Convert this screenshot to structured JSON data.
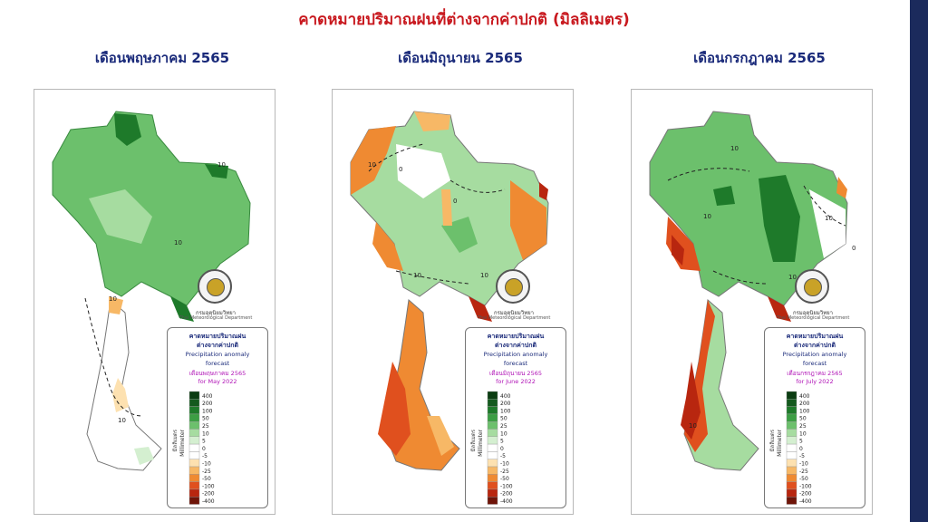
{
  "title": "คาดหมายปริมาณฝนที่ต่างจากค่าปกติ (มิลลิเมตร)",
  "maps": [
    {
      "heading": "เดือนพฤษภาคม 2565",
      "legend_month_th": "เดือนพฤษภาคม 2565",
      "legend_month_en": "for May 2022"
    },
    {
      "heading": "เดือนมิถุนายน 2565",
      "legend_month_th": "เดือนมิถุนายน 2565",
      "legend_month_en": "for June 2022"
    },
    {
      "heading": "เดือนกรกฎาคม 2565",
      "legend_month_th": "เดือนกรกฎาคม 2565",
      "legend_month_en": "for July 2022"
    }
  ],
  "legend": {
    "title_th_1": "คาดหมายปริมาณฝน",
    "title_th_2": "ต่างจากค่าปกติ",
    "title_en_1": "Precipitation anomaly",
    "title_en_2": "forecast",
    "unit_th": "มิลลิเมตร",
    "unit_en": "Millimeter",
    "scale": [
      {
        "label": "400",
        "color": "#0b3d12"
      },
      {
        "label": "200",
        "color": "#145a1e"
      },
      {
        "label": "100",
        "color": "#1e7a2a"
      },
      {
        "label": "50",
        "color": "#3c9e44"
      },
      {
        "label": "25",
        "color": "#6cc06c"
      },
      {
        "label": "10",
        "color": "#a6dca0"
      },
      {
        "label": "5",
        "color": "#d4efd0"
      },
      {
        "label": "0",
        "color": "#ffffff"
      },
      {
        "label": "-5",
        "color": "#ffffff"
      },
      {
        "label": "-10",
        "color": "#fde1b0"
      },
      {
        "label": "-25",
        "color": "#f7b866"
      },
      {
        "label": "-50",
        "color": "#ef8a32"
      },
      {
        "label": "-100",
        "color": "#e0501e"
      },
      {
        "label": "-200",
        "color": "#b8260f"
      },
      {
        "label": "-400",
        "color": "#6e1408"
      }
    ]
  },
  "agency": {
    "th": "กรมอุตุนิยมวิทยา",
    "en": "Thai Meteorological Department"
  },
  "contour_labels": {
    "may": [
      "10",
      "10",
      "10",
      "10"
    ],
    "june": [
      "10",
      "0",
      "0",
      "10",
      "10"
    ],
    "july": [
      "10",
      "10",
      "10",
      "0",
      "10",
      "10"
    ]
  },
  "colors": {
    "title": "#c8181e",
    "heading": "#1a2a7a",
    "legend_month": "#b012b6"
  }
}
